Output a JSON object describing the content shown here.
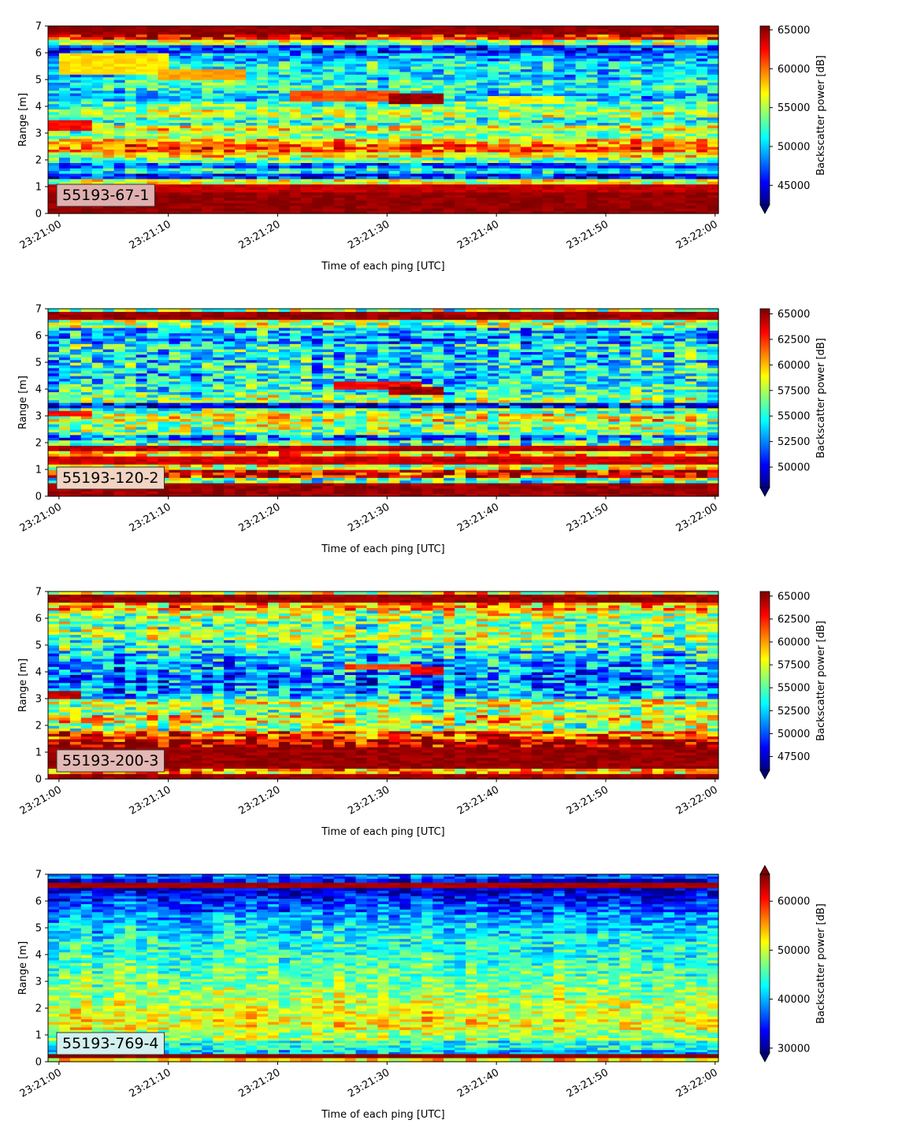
{
  "chart_data": [
    {
      "type": "heatmap",
      "label": "55193-67-1",
      "label_box_color": "#e0b0b0",
      "xlabel": "Time of each ping [UTC]",
      "ylabel": "Range [m]",
      "x_ticks": [
        "23:21:00",
        "23:21:10",
        "23:21:20",
        "23:21:30",
        "23:21:40",
        "23:21:50",
        "23:22:00"
      ],
      "xlim": [
        "23:20:59",
        "23:22:00.3"
      ],
      "y_ticks": [
        0,
        1,
        2,
        3,
        4,
        5,
        6,
        7
      ],
      "ylim": [
        0,
        7
      ],
      "colormap": "jet",
      "colorbar_label": "Backscatter power [dB]",
      "colorbar_ticks": [
        45000,
        50000,
        55000,
        60000,
        65000
      ],
      "colorbar_range": [
        42500,
        65500
      ],
      "colorbar_extend": "min",
      "profile": [
        [
          0.0,
          0.2,
          65500
        ],
        [
          0.2,
          0.5,
          65500
        ],
        [
          0.5,
          0.8,
          65500
        ],
        [
          0.8,
          1.1,
          64500
        ],
        [
          1.1,
          1.3,
          56000
        ],
        [
          1.3,
          1.5,
          46000
        ],
        [
          1.5,
          1.7,
          51000
        ],
        [
          1.7,
          1.9,
          47000
        ],
        [
          1.9,
          2.1,
          53000
        ],
        [
          2.1,
          2.3,
          57000
        ],
        [
          2.3,
          2.6,
          60500
        ],
        [
          2.6,
          2.8,
          58500
        ],
        [
          2.8,
          3.1,
          54000
        ],
        [
          3.1,
          3.3,
          57000
        ],
        [
          3.3,
          3.6,
          52000
        ],
        [
          3.6,
          3.9,
          55000
        ],
        [
          3.9,
          4.2,
          53000
        ],
        [
          4.2,
          4.6,
          50000
        ],
        [
          4.6,
          5.0,
          52000
        ],
        [
          5.0,
          5.4,
          50500
        ],
        [
          5.4,
          5.7,
          51000
        ],
        [
          5.7,
          6.0,
          49000
        ],
        [
          6.0,
          6.3,
          46500
        ],
        [
          6.3,
          6.5,
          55000
        ],
        [
          6.5,
          6.7,
          62000
        ],
        [
          6.7,
          7.0,
          65500
        ]
      ],
      "features": [
        {
          "t0": 0,
          "t1": 3,
          "r0": 3.1,
          "r1": 3.5,
          "v": 62500
        },
        {
          "t0": 1,
          "t1": 10,
          "r0": 5.3,
          "r1": 6.0,
          "v": 57500
        },
        {
          "t0": 10,
          "t1": 17,
          "r0": 5.0,
          "r1": 5.4,
          "v": 59000
        },
        {
          "t0": 22,
          "t1": 31,
          "r0": 4.25,
          "r1": 4.55,
          "v": 61000
        },
        {
          "t0": 31,
          "t1": 35,
          "r0": 4.15,
          "r1": 4.5,
          "v": 65000
        },
        {
          "t0": 40,
          "t1": 46,
          "r0": 4.1,
          "r1": 4.4,
          "v": 57000
        }
      ],
      "noise": 4500,
      "seed": 11
    },
    {
      "type": "heatmap",
      "label": "55193-120-2",
      "label_box_color": "#f0d4c4",
      "xlabel": "Time of each ping [UTC]",
      "ylabel": "Range [m]",
      "x_ticks": [
        "23:21:00",
        "23:21:10",
        "23:21:20",
        "23:21:30",
        "23:21:40",
        "23:21:50",
        "23:22:00"
      ],
      "xlim": [
        "23:20:59",
        "23:22:00.3"
      ],
      "y_ticks": [
        0,
        1,
        2,
        3,
        4,
        5,
        6,
        7
      ],
      "ylim": [
        0,
        7
      ],
      "colormap": "jet",
      "colorbar_label": "Backscatter power [dB]",
      "colorbar_ticks": [
        50000,
        52500,
        55000,
        57500,
        60000,
        62500,
        65000
      ],
      "colorbar_range": [
        48000,
        65500
      ],
      "colorbar_extend": "min",
      "profile": [
        [
          0.0,
          0.2,
          65500
        ],
        [
          0.2,
          0.5,
          65500
        ],
        [
          0.5,
          0.7,
          56000
        ],
        [
          0.7,
          1.0,
          63500
        ],
        [
          1.0,
          1.2,
          58000
        ],
        [
          1.2,
          1.5,
          64500
        ],
        [
          1.5,
          1.7,
          60000
        ],
        [
          1.7,
          1.9,
          65000
        ],
        [
          1.9,
          2.1,
          56000
        ],
        [
          2.1,
          2.3,
          52000
        ],
        [
          2.3,
          2.5,
          56000
        ],
        [
          2.5,
          2.8,
          57000
        ],
        [
          2.8,
          3.1,
          58500
        ],
        [
          3.1,
          3.3,
          56000
        ],
        [
          3.3,
          3.5,
          49500
        ],
        [
          3.5,
          3.8,
          56500
        ],
        [
          3.8,
          4.2,
          55000
        ],
        [
          4.2,
          4.6,
          54000
        ],
        [
          4.6,
          5.0,
          54500
        ],
        [
          5.0,
          5.4,
          54000
        ],
        [
          5.4,
          5.7,
          55000
        ],
        [
          5.7,
          6.0,
          52500
        ],
        [
          6.0,
          6.3,
          53500
        ],
        [
          6.3,
          6.6,
          57000
        ],
        [
          6.6,
          6.9,
          65500
        ],
        [
          6.9,
          7.0,
          57000
        ]
      ],
      "features": [
        {
          "t0": 0,
          "t1": 3,
          "r0": 3.0,
          "r1": 3.2,
          "v": 63000
        },
        {
          "t0": 26,
          "t1": 33,
          "r0": 4.05,
          "r1": 4.25,
          "v": 63500
        },
        {
          "t0": 31,
          "t1": 35,
          "r0": 3.85,
          "r1": 4.1,
          "v": 65000
        }
      ],
      "noise": 4500,
      "seed": 23
    },
    {
      "type": "heatmap",
      "label": "55193-200-3",
      "label_box_color": "#e4b8b4",
      "xlabel": "Time of each ping [UTC]",
      "ylabel": "Range [m]",
      "x_ticks": [
        "23:21:00",
        "23:21:10",
        "23:21:20",
        "23:21:30",
        "23:21:40",
        "23:21:50",
        "23:22:00"
      ],
      "xlim": [
        "23:20:59",
        "23:22:00.3"
      ],
      "y_ticks": [
        0,
        1,
        2,
        3,
        4,
        5,
        6,
        7
      ],
      "ylim": [
        0,
        7
      ],
      "colormap": "jet",
      "colorbar_label": "Backscatter power [dB]",
      "colorbar_ticks": [
        47500,
        50000,
        52500,
        55000,
        57500,
        60000,
        62500,
        65000
      ],
      "colorbar_range": [
        46000,
        65500
      ],
      "colorbar_extend": "min",
      "profile": [
        [
          0.0,
          0.2,
          65500
        ],
        [
          0.2,
          0.4,
          60000
        ],
        [
          0.4,
          1.2,
          65500
        ],
        [
          1.2,
          1.5,
          64000
        ],
        [
          1.5,
          1.8,
          61500
        ],
        [
          1.8,
          2.1,
          56000
        ],
        [
          2.1,
          2.4,
          58500
        ],
        [
          2.4,
          2.7,
          55500
        ],
        [
          2.7,
          3.0,
          57000
        ],
        [
          3.0,
          3.3,
          52000
        ],
        [
          3.3,
          3.6,
          51000
        ],
        [
          3.6,
          4.0,
          50500
        ],
        [
          4.0,
          4.4,
          51500
        ],
        [
          4.4,
          4.8,
          52500
        ],
        [
          4.8,
          5.2,
          54500
        ],
        [
          5.2,
          5.6,
          56000
        ],
        [
          5.6,
          6.0,
          55500
        ],
        [
          6.0,
          6.3,
          56500
        ],
        [
          6.3,
          6.6,
          59500
        ],
        [
          6.6,
          6.9,
          65500
        ],
        [
          6.9,
          7.0,
          57500
        ]
      ],
      "features": [
        {
          "t0": 0,
          "t1": 2,
          "r0": 3.0,
          "r1": 3.2,
          "v": 64000
        },
        {
          "t0": 27,
          "t1": 33,
          "r0": 4.1,
          "r1": 4.3,
          "v": 62000
        },
        {
          "t0": 33,
          "t1": 35,
          "r0": 3.9,
          "r1": 4.15,
          "v": 63500
        }
      ],
      "noise": 5000,
      "seed": 37
    },
    {
      "type": "heatmap",
      "label": "55193-769-4",
      "label_box_color": "#d2f0ee",
      "xlabel": "Time of each ping [UTC]",
      "ylabel": "Range [m]",
      "x_ticks": [
        "23:21:00",
        "23:21:10",
        "23:21:20",
        "23:21:30",
        "23:21:40",
        "23:21:50",
        "23:22:00"
      ],
      "xlim": [
        "23:20:59",
        "23:22:00.3"
      ],
      "y_ticks": [
        0,
        1,
        2,
        3,
        4,
        5,
        6,
        7
      ],
      "ylim": [
        0,
        7
      ],
      "colormap": "jet",
      "colorbar_label": "Backscatter power [dB]",
      "colorbar_ticks": [
        30000,
        40000,
        50000,
        60000
      ],
      "colorbar_range": [
        29000,
        65500
      ],
      "colorbar_extend": "both",
      "profile": [
        [
          0.0,
          0.15,
          53000
        ],
        [
          0.15,
          0.3,
          65500
        ],
        [
          0.3,
          0.45,
          41000
        ],
        [
          0.45,
          0.8,
          44000
        ],
        [
          0.8,
          1.2,
          49000
        ],
        [
          1.2,
          1.6,
          52000
        ],
        [
          1.6,
          2.0,
          51500
        ],
        [
          2.0,
          2.4,
          50000
        ],
        [
          2.4,
          2.8,
          48500
        ],
        [
          2.8,
          3.2,
          47000
        ],
        [
          3.2,
          3.6,
          46000
        ],
        [
          3.6,
          4.0,
          45000
        ],
        [
          4.0,
          4.4,
          44000
        ],
        [
          4.4,
          4.8,
          43500
        ],
        [
          4.8,
          5.2,
          41500
        ],
        [
          5.2,
          5.6,
          39500
        ],
        [
          5.6,
          6.0,
          36500
        ],
        [
          6.0,
          6.3,
          34000
        ],
        [
          6.3,
          6.5,
          31500
        ],
        [
          6.5,
          6.7,
          64500
        ],
        [
          6.7,
          6.85,
          33000
        ],
        [
          6.85,
          7.0,
          37000
        ]
      ],
      "features": [],
      "noise": 6000,
      "seed": 53
    }
  ]
}
